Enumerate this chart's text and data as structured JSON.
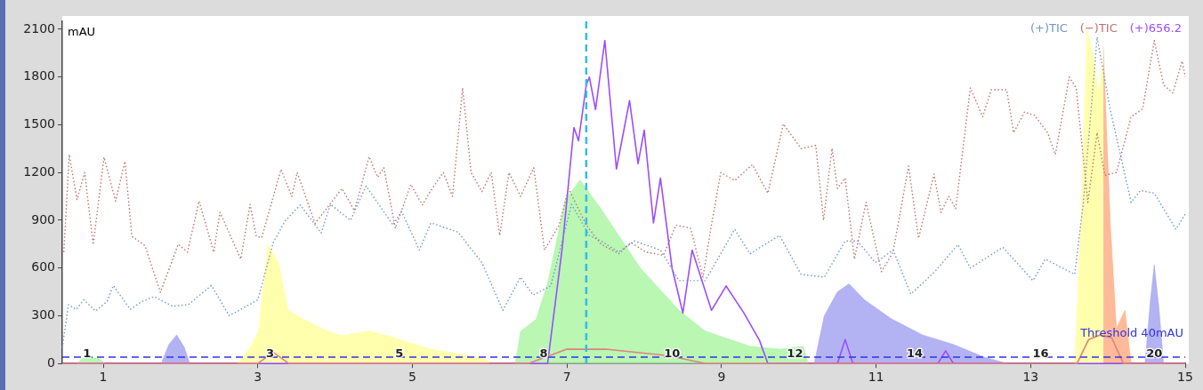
{
  "chart_data": {
    "type": "line",
    "ylabel": "mAU",
    "xlim": [
      0.47,
      15
    ],
    "ylim": [
      0,
      2150
    ],
    "xticks": [
      1,
      3,
      5,
      7,
      9,
      11,
      13,
      15
    ],
    "yticks": [
      0,
      300,
      600,
      900,
      1200,
      1500,
      1800,
      2100
    ],
    "grid": false,
    "legend": "top right",
    "marker": "none",
    "series": [
      {
        "type": "area",
        "color": "#a8f5a0",
        "x": [
          0.65,
          0.75,
          0.85,
          0.95,
          1.02
        ],
        "values": [
          0,
          35,
          40,
          30,
          0
        ]
      },
      {
        "type": "area",
        "color": "#a0a0f0",
        "x": [
          1.75,
          1.85,
          1.95,
          2.05,
          2.12
        ],
        "values": [
          0,
          120,
          180,
          100,
          0
        ]
      },
      {
        "type": "area",
        "color": "#ffff99",
        "x": [
          2.74,
          2.9,
          3.01,
          3.13,
          3.27,
          3.39,
          3.55,
          3.9,
          4.09,
          4.44,
          4.75,
          5.24,
          5.9,
          6.0
        ],
        "values": [
          0,
          100,
          204,
          747,
          634,
          334,
          288,
          204,
          175,
          204,
          164,
          90,
          34,
          10
        ]
      },
      {
        "type": "area",
        "color": "#a8f5a0",
        "x": [
          6.33,
          6.4,
          6.6,
          6.75,
          6.98,
          7.17,
          7.44,
          7.95,
          8.45,
          8.79,
          9.37,
          9.75,
          10.06,
          10.12
        ],
        "values": [
          0,
          204,
          277,
          504,
          1030,
          1154,
          973,
          600,
          334,
          204,
          108,
          90,
          108,
          0
        ]
      },
      {
        "type": "area",
        "color": "#a0a0f0",
        "x": [
          10.2,
          10.33,
          10.5,
          10.65,
          10.85,
          11.2,
          11.6,
          12.0,
          12.4,
          12.7
        ],
        "values": [
          0,
          300,
          450,
          500,
          400,
          280,
          180,
          120,
          40,
          0
        ]
      },
      {
        "type": "area",
        "color": "#ffff99",
        "x": [
          13.57,
          13.65,
          13.73,
          13.8,
          13.88,
          13.94
        ],
        "values": [
          0,
          883,
          2100,
          1950,
          1700,
          1900
        ]
      },
      {
        "type": "area",
        "color": "#ffaa80",
        "x": [
          13.94,
          13.98,
          14.03,
          14.11,
          14.22,
          14.3
        ],
        "values": [
          1992,
          1500,
          883,
          220,
          334,
          0
        ]
      },
      {
        "type": "area",
        "color": "#a0a0f0",
        "x": [
          14.48,
          14.55,
          14.6,
          14.66,
          14.72
        ],
        "values": [
          0,
          400,
          620,
          350,
          0
        ]
      },
      {
        "color": "#e08080",
        "line_style": "solid",
        "x": [
          0.47,
          3.0,
          3.2,
          3.4,
          6.5,
          7.0,
          7.5,
          8.3,
          8.8,
          13.6,
          13.75,
          13.9,
          14.05,
          14.2,
          15
        ],
        "values": [
          0,
          0,
          70,
          0,
          0,
          90,
          90,
          50,
          0,
          0,
          150,
          180,
          160,
          0,
          0
        ]
      },
      {
        "name": "(+)TIC",
        "color": "#7098c8",
        "line_style": "dotted",
        "x": [
          0.47,
          0.55,
          0.65,
          0.75,
          0.9,
          1.05,
          1.13,
          1.35,
          1.5,
          1.66,
          1.9,
          2.1,
          2.4,
          2.63,
          3.0,
          3.2,
          3.36,
          3.55,
          3.82,
          3.94,
          4.2,
          4.4,
          4.75,
          4.86,
          5.09,
          5.24,
          5.59,
          5.9,
          6.17,
          6.4,
          6.56,
          6.79,
          7.06,
          7.29,
          7.44,
          7.67,
          7.87,
          8.21,
          8.45,
          8.79,
          9.17,
          9.37,
          9.75,
          10.03,
          10.33,
          10.6,
          10.76,
          10.99,
          11.22,
          11.45,
          11.76,
          12.06,
          12.22,
          12.64,
          13.03,
          13.19,
          13.57,
          13.68,
          13.86,
          14.03,
          14.3,
          14.42,
          14.6,
          14.88,
          15
        ],
        "values": [
          100,
          370,
          340,
          400,
          330,
          390,
          490,
          340,
          390,
          420,
          360,
          370,
          490,
          300,
          400,
          760,
          900,
          996,
          820,
          1000,
          900,
          1115,
          870,
          956,
          713,
          883,
          826,
          634,
          334,
          543,
          430,
          487,
          1000,
          805,
          770,
          700,
          770,
          713,
          521,
          521,
          843,
          690,
          805,
          560,
          543,
          770,
          770,
          634,
          713,
          436,
          577,
          747,
          600,
          730,
          521,
          656,
          560,
          1000,
          2050,
          1596,
          1013,
          1087,
          1070,
          843,
          939
        ]
      },
      {
        "name": "(−)TIC",
        "color": "#c07070",
        "line_style": "dotted",
        "x": [
          0.49,
          0.56,
          0.66,
          0.76,
          0.87,
          1.01,
          1.16,
          1.28,
          1.37,
          1.54,
          1.74,
          1.97,
          2.09,
          2.24,
          2.43,
          2.51,
          2.78,
          2.9,
          2.98,
          3.05,
          3.3,
          3.44,
          3.51,
          3.74,
          3.9,
          4.09,
          4.25,
          4.44,
          4.55,
          4.63,
          4.78,
          4.98,
          5.13,
          5.24,
          5.4,
          5.52,
          5.65,
          5.76,
          5.9,
          6.02,
          6.13,
          6.25,
          6.4,
          6.57,
          6.71,
          6.9,
          7.02,
          7.25,
          7.44,
          7.67,
          7.83,
          8.02,
          8.25,
          8.41,
          8.6,
          8.76,
          8.87,
          8.99,
          9.17,
          9.4,
          9.6,
          9.8,
          10.03,
          10.22,
          10.32,
          10.43,
          10.5,
          10.6,
          10.72,
          10.87,
          11.07,
          11.22,
          11.42,
          11.55,
          11.75,
          11.84,
          11.94,
          12.03,
          12.22,
          12.38,
          12.49,
          12.69,
          12.78,
          12.92,
          13.05,
          13.22,
          13.32,
          13.5,
          13.59,
          13.74,
          13.86,
          13.96,
          14.11,
          14.3,
          14.45,
          14.6,
          14.72,
          14.84,
          14.96,
          15
        ],
        "values": [
          700,
          1313,
          1030,
          1200,
          747,
          1296,
          1020,
          1270,
          800,
          740,
          447,
          750,
          700,
          1020,
          700,
          950,
          656,
          1000,
          800,
          790,
          1220,
          1050,
          1200,
          880,
          980,
          1100,
          960,
          1300,
          1170,
          1230,
          850,
          1126,
          996,
          1087,
          1200,
          1050,
          1732,
          1200,
          1080,
          1200,
          805,
          1200,
          1050,
          1230,
          713,
          870,
          1100,
          870,
          750,
          690,
          760,
          700,
          680,
          870,
          850,
          543,
          870,
          1200,
          1150,
          1250,
          1070,
          1505,
          1350,
          1370,
          900,
          1352,
          1100,
          1165,
          656,
          1013,
          577,
          700,
          1240,
          787,
          1190,
          950,
          1050,
          973,
          1732,
          1550,
          1720,
          1720,
          1450,
          1580,
          1560,
          1450,
          1313,
          1800,
          1730,
          1013,
          1450,
          1183,
          1200,
          1550,
          1600,
          2030,
          1750,
          1700,
          1900,
          1800
        ]
      },
      {
        "name": "(+)656.2",
        "color": "#9b4dff",
        "line_style": "solid",
        "x": [
          0.47,
          6.75,
          6.94,
          7.09,
          7.15,
          7.25,
          7.29,
          7.37,
          7.49,
          7.64,
          7.81,
          7.92,
          8.0,
          8.12,
          8.21,
          8.36,
          8.5,
          8.62,
          8.87,
          9.06,
          9.29,
          9.49,
          9.6,
          10.5,
          10.6,
          10.7,
          11.8,
          11.9,
          12.0,
          15
        ],
        "values": [
          0,
          0,
          730,
          1483,
          1400,
          1750,
          1800,
          1596,
          2030,
          1222,
          1652,
          1256,
          1466,
          883,
          1165,
          600,
          317,
          713,
          334,
          487,
          317,
          147,
          0,
          0,
          150,
          0,
          0,
          80,
          0,
          0
        ]
      }
    ],
    "ref_lines": [
      {
        "axis": "x",
        "value": 7.25,
        "color": "#33bbee",
        "line_style": "dashed"
      },
      {
        "axis": "y",
        "value": 40,
        "color": "#3333dd",
        "line_style": "dashed",
        "label": "Threshold 40mAU"
      }
    ],
    "annotations": [
      {
        "text": "1",
        "x": 0.79,
        "y": 60
      },
      {
        "text": "3",
        "x": 3.16,
        "y": 60
      },
      {
        "text": "5",
        "x": 4.83,
        "y": 60
      },
      {
        "text": "8",
        "x": 6.7,
        "y": 60
      },
      {
        "text": "10",
        "x": 8.36,
        "y": 60
      },
      {
        "text": "12",
        "x": 9.95,
        "y": 60
      },
      {
        "text": "14",
        "x": 11.5,
        "y": 60
      },
      {
        "text": "16",
        "x": 13.13,
        "y": 60
      },
      {
        "text": "20",
        "x": 14.6,
        "y": 60
      }
    ]
  }
}
